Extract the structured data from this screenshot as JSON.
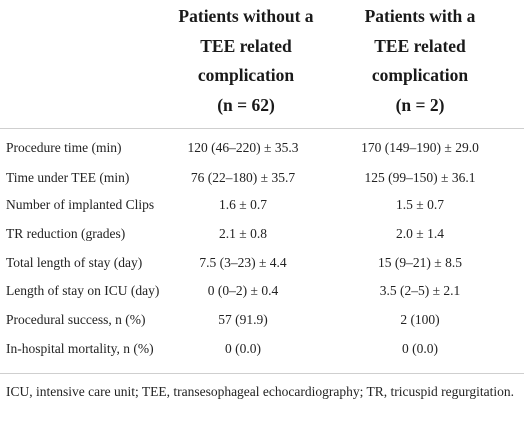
{
  "table": {
    "columns": [
      [
        "Patients without a",
        "TEE related",
        "complication",
        "(n = 62)"
      ],
      [
        "Patients with a",
        "TEE related",
        "complication",
        "(n = 2)"
      ]
    ],
    "rows": [
      [
        "Procedure time (min)",
        "120 (46–220) ± 35.3",
        "170 (149–190) ± 29.0"
      ],
      [
        "Time under TEE (min)",
        "76 (22–180) ± 35.7",
        "125 (99–150) ± 36.1"
      ],
      [
        "Number of implanted Clips",
        "1.6 ± 0.7",
        "1.5 ± 0.7"
      ],
      [
        "TR reduction (grades)",
        "2.1 ± 0.8",
        "2.0 ± 1.4"
      ],
      [
        "Total length of stay (day)",
        "7.5 (3–23) ± 4.4",
        "15 (9–21) ± 8.5"
      ],
      [
        "Length of stay on ICU (day)",
        "0 (0–2) ± 0.4",
        "3.5 (2–5) ± 2.1"
      ],
      [
        "Procedural success, n (%)",
        "57 (91.9)",
        "2 (100)"
      ],
      [
        "In-hospital mortality, n (%)",
        "0 (0.0)",
        "0 (0.0)"
      ]
    ]
  },
  "footnote": "ICU, intensive care unit; TEE, transesophageal echocardiography; TR, tricuspid regurgitation."
}
